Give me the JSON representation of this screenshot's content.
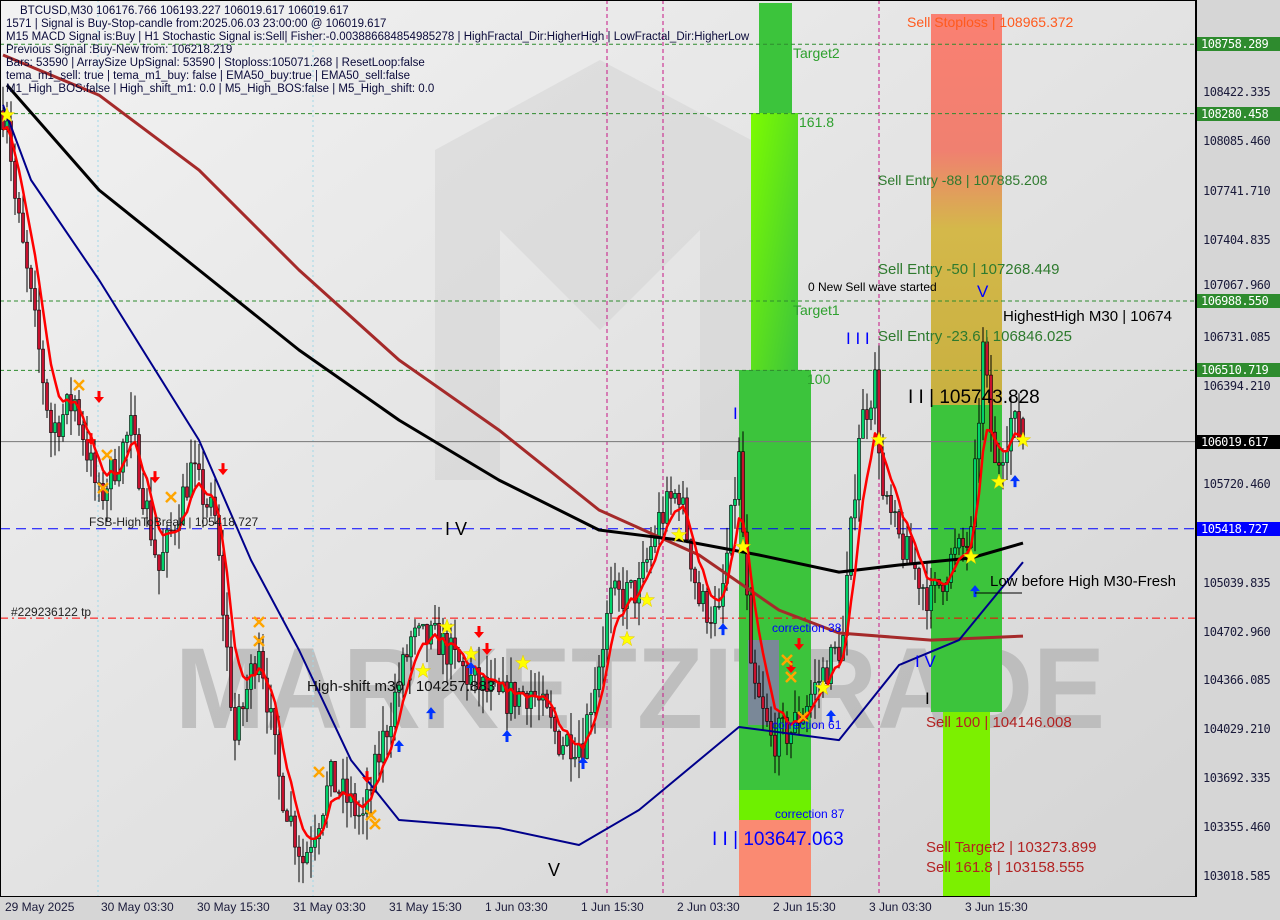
{
  "header": {
    "symbol_line": "BTCUSD,M30  106176.766 106193.227 106019.617 106019.617",
    "lines": [
      "1571 | Signal is Buy-Stop-candle from:2025.06.03 23:00:00 @ 106019.617",
      "M15 MACD Signal is:Buy | H1 Stochastic Signal is:Sell| Fisher:-0.003886684854985278 | HighFractal_Dir:HigherHigh | LowFractal_Dir:HigherLow",
      "Previous Signal :Buy-New from: 106218.219",
      "Bars: 53590 | ArraySize UpSignal: 53590 | Stoploss:105071.268 | ResetLoop:false",
      "tema_m1_sell: true | tema_m1_buy: false | EMA50_buy:true | EMA50_sell:false",
      "M1_High_BOS:false | High_shift_m1: 0.0 | M5_High_BOS:false | M5_High_shift: 0.0"
    ]
  },
  "watermark": "MARKETZITRADE",
  "colors": {
    "bull": "#00d26a",
    "bear": "#c8102e",
    "tema": "#ff0000",
    "ema_black": "#000000",
    "ema_brown": "#a52a2a",
    "ema_navy": "#00008b",
    "level_green": "#2e8b2e",
    "level_blue": "#0000ff",
    "level_price": "#000000"
  },
  "chart_data": {
    "type": "candlestick",
    "symbol": "BTCUSD",
    "timeframe": "M30",
    "ylim": [
      102900,
      109050
    ],
    "y_ticks": [
      "108422.335",
      "108085.460",
      "107741.710",
      "107404.835",
      "107067.960",
      "106731.085",
      "106394.210",
      "105720.460",
      "105039.835",
      "104702.960",
      "104366.085",
      "104029.210",
      "103692.335",
      "103355.460",
      "103018.585"
    ],
    "x_ticks": [
      {
        "t": "2025-05-29 15:30",
        "label": "29 May 2025"
      },
      {
        "t": "2025-05-30 03:30",
        "label": "30 May 03:30"
      },
      {
        "t": "2025-05-30 15:30",
        "label": "30 May 15:30"
      },
      {
        "t": "2025-05-31 03:30",
        "label": "31 May 03:30"
      },
      {
        "t": "2025-05-31 15:30",
        "label": "31 May 15:30"
      },
      {
        "t": "2025-06-01 03:30",
        "label": "1 Jun 03:30"
      },
      {
        "t": "2025-06-01 15:30",
        "label": "1 Jun 15:30"
      },
      {
        "t": "2025-06-02 03:30",
        "label": "2 Jun 03:30"
      },
      {
        "t": "2025-06-02 15:30",
        "label": "2 Jun 15:30"
      },
      {
        "t": "2025-06-03 03:30",
        "label": "3 Jun 03:30"
      },
      {
        "t": "2025-06-03 15:30",
        "label": "3 Jun 15:30"
      }
    ],
    "price_path": [
      [
        "2025-05-29 15:30",
        108300
      ],
      [
        "2025-05-29 16:00",
        108305
      ],
      [
        "2025-05-29 17:00",
        107685
      ],
      [
        "2025-05-29 19:00",
        106995
      ],
      [
        "2025-05-29 21:30",
        106100
      ],
      [
        "2025-05-30 00:30",
        106306
      ],
      [
        "2025-05-30 03:30",
        105617
      ],
      [
        "2025-05-30 07:30",
        106100
      ],
      [
        "2025-05-30 11:00",
        105134
      ],
      [
        "2025-05-30 15:00",
        105824
      ],
      [
        "2025-05-30 18:00",
        105479
      ],
      [
        "2025-05-30 20:30",
        103962
      ],
      [
        "2025-05-30 23:30",
        104651
      ],
      [
        "2025-05-31 02:00",
        103687
      ],
      [
        "2025-05-31 05:00",
        103136
      ],
      [
        "2025-05-31 08:30",
        103687
      ],
      [
        "2025-05-31 12:30",
        103411
      ],
      [
        "2025-05-31 15:00",
        103962
      ],
      [
        "2025-05-31 18:30",
        104651
      ],
      [
        "2025-05-31 22:00",
        104651
      ],
      [
        "2025-06-01 02:00",
        104376
      ],
      [
        "2025-06-01 05:30",
        104238
      ],
      [
        "2025-06-01 09:30",
        104307
      ],
      [
        "2025-06-01 13:00",
        103962
      ],
      [
        "2025-06-01 16:00",
        103962
      ],
      [
        "2025-06-01 19:30",
        104927
      ],
      [
        "2025-06-01 23:00",
        104996
      ],
      [
        "2025-06-02 01:30",
        105479
      ],
      [
        "2025-06-02 04:00",
        105686
      ],
      [
        "2025-06-02 06:30",
        104927
      ],
      [
        "2025-06-02 09:00",
        104789
      ],
      [
        "2025-06-02 11:30",
        105892
      ],
      [
        "2025-06-02 13:00",
        104376
      ],
      [
        "2025-06-02 15:30",
        103962
      ],
      [
        "2025-06-02 18:00",
        104031
      ],
      [
        "2025-06-02 21:30",
        104376
      ],
      [
        "2025-06-03 00:30",
        104651
      ],
      [
        "2025-06-03 02:30",
        106100
      ],
      [
        "2025-06-03 04:30",
        106444
      ],
      [
        "2025-06-03 05:30",
        105617
      ],
      [
        "2025-06-03 07:30",
        105341
      ],
      [
        "2025-06-03 11:30",
        104927
      ],
      [
        "2025-06-03 14:00",
        105203
      ],
      [
        "2025-06-03 16:30",
        105341
      ],
      [
        "2025-06-03 18:00",
        106651
      ],
      [
        "2025-06-03 19:30",
        105824
      ],
      [
        "2025-06-03 21:30",
        106168
      ],
      [
        "2025-06-03 23:00",
        106019.617
      ]
    ],
    "last_ohlc": {
      "open": 106176.766,
      "high": 106193.227,
      "low": 106019.617,
      "close": 106019.617
    },
    "ma_lines": {
      "black": [
        [
          "2025-05-29 16:00",
          108477
        ],
        [
          "2025-05-30 03:30",
          107754
        ],
        [
          "2025-05-30 16:00",
          107202
        ],
        [
          "2025-05-31 04:30",
          106651
        ],
        [
          "2025-05-31 17:00",
          106168
        ],
        [
          "2025-06-01 05:30",
          105754
        ],
        [
          "2025-06-01 18:00",
          105410
        ],
        [
          "2025-06-02 04:00",
          105341
        ],
        [
          "2025-06-02 14:00",
          105238
        ],
        [
          "2025-06-03 00:00",
          105120
        ],
        [
          "2025-06-03 07:30",
          105169
        ],
        [
          "2025-06-03 16:30",
          105217
        ],
        [
          "2025-06-03 23:00",
          105320
        ]
      ],
      "brown": [
        [
          "2025-05-29 15:30",
          108684
        ],
        [
          "2025-05-30 03:30",
          108408
        ],
        [
          "2025-05-30 16:00",
          107891
        ],
        [
          "2025-05-31 04:30",
          107202
        ],
        [
          "2025-05-31 17:00",
          106582
        ],
        [
          "2025-06-01 05:30",
          106099
        ],
        [
          "2025-06-01 18:00",
          105548
        ],
        [
          "2025-06-02 06:30",
          105238
        ],
        [
          "2025-06-02 16:30",
          104858
        ],
        [
          "2025-06-03 00:00",
          104700
        ],
        [
          "2025-06-03 11:30",
          104651
        ],
        [
          "2025-06-03 23:00",
          104679
        ]
      ],
      "navy": [
        [
          "2025-05-29 15:30",
          108340
        ],
        [
          "2025-05-29 19:00",
          107823
        ],
        [
          "2025-05-30 03:30",
          107134
        ],
        [
          "2025-05-30 16:00",
          106030
        ],
        [
          "2025-05-30 22:30",
          105203
        ],
        [
          "2025-05-31 04:30",
          104583
        ],
        [
          "2025-05-31 11:00",
          103824
        ],
        [
          "2025-05-31 17:00",
          103411
        ],
        [
          "2025-06-01 05:30",
          103356
        ],
        [
          "2025-06-01 15:30",
          103239
        ],
        [
          "2025-06-01 23:00",
          103480
        ],
        [
          "2025-06-02 11:30",
          104052
        ],
        [
          "2025-06-03 00:00",
          103962
        ],
        [
          "2025-06-03 07:30",
          104479
        ],
        [
          "2025-06-03 15:00",
          104651
        ],
        [
          "2025-06-03 23:00",
          105189
        ]
      ]
    },
    "levels": [
      {
        "price": "108758.289",
        "style": "green-dashed"
      },
      {
        "price": "108280.458",
        "style": "green-dashed"
      },
      {
        "price": "106988.550",
        "style": "green-dashed"
      },
      {
        "price": "106510.719",
        "style": "green-dashed"
      },
      {
        "price": "106019.617",
        "style": "current"
      },
      {
        "price": "105418.727",
        "style": "blue-dashed"
      },
      {
        "price": "104803",
        "style": "red-dashdot"
      }
    ],
    "markers": {
      "star": [
        [
          "2025-05-29 16:00",
          108270
        ],
        [
          "2025-05-31 23:00",
          104741
        ],
        [
          "2025-06-01 02:00",
          104555
        ],
        [
          "2025-05-31 20:00",
          104438
        ],
        [
          "2025-06-01 08:30",
          104493
        ],
        [
          "2025-06-01 21:30",
          104658
        ],
        [
          "2025-06-02 00:00",
          104927
        ],
        [
          "2025-06-02 04:00",
          105375
        ],
        [
          "2025-06-02 12:00",
          105293
        ],
        [
          "2025-06-02 22:00",
          104321
        ],
        [
          "2025-06-03 05:00",
          106030
        ],
        [
          "2025-06-03 16:30",
          105224
        ],
        [
          "2025-06-03 20:00",
          105741
        ],
        [
          "2025-06-03 23:00",
          106030
        ]
      ],
      "sell_arrow": [
        [
          "2025-05-30 03:30",
          106320
        ],
        [
          "2025-05-30 02:30",
          106030
        ],
        [
          "2025-05-30 10:30",
          105768
        ],
        [
          "2025-05-30 19:00",
          105823
        ],
        [
          "2025-05-31 13:00",
          103700
        ],
        [
          "2025-06-01 03:00",
          104700
        ],
        [
          "2025-06-01 04:00",
          104583
        ],
        [
          "2025-06-02 19:00",
          104617
        ],
        [
          "2025-06-02 18:00",
          104459
        ]
      ],
      "buy_arrow": [
        [
          "2025-05-31 17:00",
          103928
        ],
        [
          "2025-05-31 21:00",
          104155
        ],
        [
          "2025-06-01 02:00",
          104466
        ],
        [
          "2025-06-01 06:30",
          103997
        ],
        [
          "2025-06-01 16:00",
          103811
        ],
        [
          "2025-06-02 09:30",
          104734
        ],
        [
          "2025-06-02 23:00",
          104135
        ],
        [
          "2025-06-03 17:00",
          104996
        ],
        [
          "2025-06-03 22:00",
          105754
        ]
      ],
      "cross": [
        [
          "2025-05-30 01:00",
          106409
        ],
        [
          "2025-05-30 04:30",
          105927
        ],
        [
          "2025-05-30 04:00",
          105699
        ],
        [
          "2025-05-30 12:30",
          105637
        ],
        [
          "2025-05-30 23:30",
          104776
        ],
        [
          "2025-05-30 23:30",
          104645
        ],
        [
          "2025-05-31 07:00",
          103742
        ],
        [
          "2025-05-31 13:30",
          103445
        ],
        [
          "2025-05-31 14:00",
          103384
        ],
        [
          "2025-06-02 17:30",
          104514
        ],
        [
          "2025-06-02 18:00",
          104397
        ],
        [
          "2025-06-02 19:30",
          104121
        ]
      ]
    }
  },
  "labels": {
    "sell_stoploss": "Sell Stoploss | 108965.372",
    "target2": "Target2",
    "fib_1618": "161.8",
    "sell_entry_88": "Sell Entry -88 | 107885.208",
    "sell_entry_50": "Sell Entry -50 | 107268.449",
    "new_sell_wave": "0 New Sell wave started",
    "wave_v_top": "V",
    "target1": "Target1",
    "wave_iii": "I I I",
    "sell_entry_236": "Sell Entry -23.6 | 106846.025",
    "highest_high": "HighestHigh   M30 | 10674",
    "fib_100": "100",
    "wave_ii_high": "I I | 105743.828",
    "wave_i": "I",
    "fsb_high": "FSB-HighToBreak | 105418.727",
    "wave_iv_left": "I V",
    "low_before_high": "Low before High    M30-Fresh",
    "tp_order": "#229236122 tp",
    "correction_38": "correction 38",
    "wave_iv_right": "I V",
    "high_shift": "High-shift m30 | 104257.883",
    "wave_i_right": "I",
    "sell_100": "Sell 100 | 104146.008",
    "correction_61": "correction 61",
    "wave_ii_low": "I I | 103647.063",
    "correction_87": "correction 87",
    "sell_target2": "Sell Target2 | 103273.899",
    "sell_1618": "Sell 161.8 | 103158.555",
    "wave_v_bottom": "V"
  }
}
